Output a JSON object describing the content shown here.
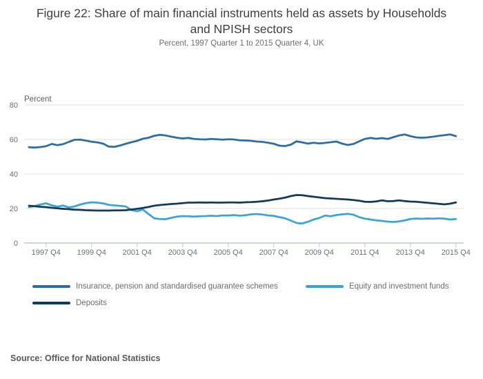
{
  "header": {
    "title": "Figure 22: Share of main financial instruments held as assets by Households and NPISH sectors",
    "subtitle": "Percent, 1997 Quarter 1 to 2015 Quarter 4, UK"
  },
  "chart_data": {
    "type": "line",
    "unit_label": "Percent",
    "x_range_text": "1997 Quarter 1 to 2015 Quarter 4",
    "ylim": [
      0,
      80
    ],
    "y_ticks": [
      0,
      20,
      40,
      60,
      80
    ],
    "grid": "horizontal",
    "legend_position": "bottom",
    "x_ticks": [
      {
        "q": 3,
        "label": "1997 Q4"
      },
      {
        "q": 11,
        "label": "1999 Q4"
      },
      {
        "q": 19,
        "label": "2001 Q4"
      },
      {
        "q": 27,
        "label": "2003 Q4"
      },
      {
        "q": 35,
        "label": "2005 Q4"
      },
      {
        "q": 43,
        "label": "2007 Q4"
      },
      {
        "q": 51,
        "label": "2009 Q4"
      },
      {
        "q": 59,
        "label": "2011 Q4"
      },
      {
        "q": 67,
        "label": "2013 Q4"
      },
      {
        "q": 75,
        "label": "2015 Q4"
      }
    ],
    "series": [
      {
        "name": "Insurance, pension and standardised guarantee schemes",
        "color": "#2e6da4",
        "values": [
          55.5,
          55.3,
          55.6,
          56.1,
          57.4,
          56.7,
          57.3,
          58.6,
          59.8,
          59.9,
          59.3,
          58.7,
          58.3,
          57.6,
          55.9,
          55.7,
          56.5,
          57.5,
          58.4,
          59.2,
          60.4,
          61.0,
          62.1,
          62.7,
          62.3,
          61.6,
          61.0,
          60.6,
          60.9,
          60.3,
          60.1,
          60.0,
          60.3,
          60.1,
          59.9,
          60.1,
          60.0,
          59.5,
          59.4,
          59.2,
          58.8,
          58.6,
          58.1,
          57.5,
          56.4,
          56.2,
          57.0,
          58.9,
          58.3,
          57.6,
          58.1,
          57.7,
          58.0,
          58.4,
          58.8,
          57.6,
          56.8,
          57.4,
          58.9,
          60.3,
          60.9,
          60.4,
          60.8,
          60.3,
          61.3,
          62.3,
          62.9,
          61.9,
          61.2,
          61.0,
          61.2,
          61.6,
          62.1,
          62.5,
          62.9,
          61.9
        ]
      },
      {
        "name": "Equity and investment funds",
        "color": "#3aa5d4",
        "values": [
          20.8,
          21.4,
          22.3,
          23.0,
          21.8,
          21.1,
          21.7,
          20.6,
          21.2,
          22.3,
          23.1,
          23.6,
          23.4,
          23.0,
          22.1,
          21.8,
          21.5,
          21.2,
          19.1,
          18.4,
          19.4,
          16.8,
          14.3,
          13.9,
          13.8,
          14.6,
          15.3,
          15.6,
          15.5,
          15.3,
          15.5,
          15.6,
          15.8,
          15.6,
          16.0,
          15.9,
          16.2,
          15.8,
          16.1,
          16.6,
          16.8,
          16.5,
          16.0,
          15.7,
          15.0,
          14.3,
          13.0,
          11.6,
          11.3,
          12.3,
          13.6,
          14.5,
          15.9,
          15.5,
          16.2,
          16.6,
          16.9,
          16.4,
          15.0,
          14.1,
          13.6,
          13.1,
          12.8,
          12.4,
          12.2,
          12.5,
          13.1,
          13.9,
          14.2,
          14.0,
          14.2,
          14.1,
          14.3,
          14.1,
          13.6,
          13.9
        ]
      },
      {
        "name": "Deposits",
        "color": "#123a5c",
        "values": [
          21.6,
          21.3,
          21.0,
          20.8,
          20.4,
          20.1,
          19.8,
          19.6,
          19.3,
          19.2,
          19.0,
          18.9,
          18.8,
          18.8,
          18.8,
          18.9,
          18.9,
          19.0,
          19.4,
          19.8,
          20.3,
          20.9,
          21.6,
          22.0,
          22.3,
          22.6,
          22.8,
          23.1,
          23.4,
          23.4,
          23.5,
          23.4,
          23.5,
          23.4,
          23.4,
          23.5,
          23.5,
          23.4,
          23.6,
          23.7,
          23.9,
          24.2,
          24.6,
          25.2,
          25.7,
          26.3,
          27.2,
          27.8,
          27.7,
          27.2,
          26.8,
          26.4,
          26.0,
          25.8,
          25.6,
          25.4,
          25.2,
          24.9,
          24.5,
          23.9,
          23.8,
          24.1,
          24.7,
          24.2,
          24.3,
          24.7,
          24.3,
          24.0,
          23.9,
          23.6,
          23.3,
          23.0,
          22.7,
          22.4,
          22.8,
          23.5
        ]
      }
    ]
  },
  "legend": {
    "items": [
      {
        "label": "Insurance, pension and standardised guarantee schemes",
        "color": "#2e6da4"
      },
      {
        "label": "Equity and investment funds",
        "color": "#3aa5d4"
      },
      {
        "label": "Deposits",
        "color": "#123a5c"
      }
    ]
  },
  "source": {
    "text": "Source: Office for National Statistics"
  },
  "colors": {
    "gridline": "#e2e2e2",
    "axis_line": "#b9c9d7",
    "tick_text": "#6e6e6e",
    "unit_label_text": "#5f5f5f",
    "title_text": "#3f3f42",
    "subtitle_text": "#6d6d6d",
    "source_text": "#58595b"
  }
}
